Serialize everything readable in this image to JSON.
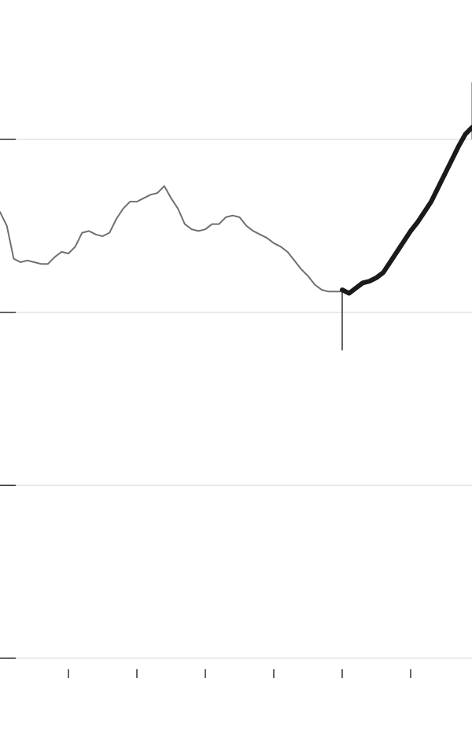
{
  "chart_data": {
    "type": "line",
    "title": "",
    "xlabel": "",
    "ylabel": "",
    "ylim": [
      0,
      3
    ],
    "yticks": [
      0,
      1,
      2,
      3
    ],
    "xlim": [
      0,
      69
    ],
    "xticks": [
      10,
      20,
      30,
      40,
      50,
      60
    ],
    "grid": true,
    "series": [
      {
        "style": "thin",
        "color": "#707070",
        "x": [
          0,
          1,
          2,
          3,
          4,
          5,
          6,
          7,
          8,
          9,
          10,
          11,
          12,
          13,
          14,
          15,
          16,
          17,
          18,
          19,
          20,
          21,
          22,
          23,
          24,
          25,
          26,
          27,
          28,
          29,
          30,
          31,
          32,
          33,
          34,
          35,
          36,
          37,
          38,
          39,
          40,
          41,
          42,
          43,
          44,
          45,
          46,
          47,
          48,
          49,
          50
        ],
        "y": [
          2.58,
          2.5,
          2.31,
          2.29,
          2.3,
          2.29,
          2.28,
          2.28,
          2.32,
          2.35,
          2.34,
          2.38,
          2.46,
          2.47,
          2.45,
          2.44,
          2.46,
          2.54,
          2.6,
          2.64,
          2.64,
          2.66,
          2.68,
          2.69,
          2.73,
          2.66,
          2.6,
          2.51,
          2.48,
          2.47,
          2.48,
          2.51,
          2.51,
          2.55,
          2.56,
          2.55,
          2.5,
          2.47,
          2.45,
          2.43,
          2.4,
          2.38,
          2.35,
          2.3,
          2.25,
          2.21,
          2.16,
          2.13,
          2.12,
          2.12,
          2.12
        ]
      },
      {
        "style": "bold",
        "color": "#1a1a1a",
        "x": [
          50,
          51,
          52,
          53,
          54,
          55,
          56,
          57,
          58,
          59,
          60,
          61,
          62,
          63,
          64,
          65,
          66,
          67,
          68,
          69
        ],
        "y": [
          2.13,
          2.11,
          2.14,
          2.17,
          2.18,
          2.2,
          2.23,
          2.29,
          2.35,
          2.41,
          2.47,
          2.52,
          2.58,
          2.64,
          2.72,
          2.8,
          2.88,
          2.96,
          3.03,
          3.07
        ]
      }
    ],
    "annotations": [
      {
        "x": 50,
        "from_y": 2.12,
        "to_y": 1.78
      },
      {
        "x": 69,
        "from_y": 3.0,
        "to_y": 3.33
      }
    ]
  }
}
